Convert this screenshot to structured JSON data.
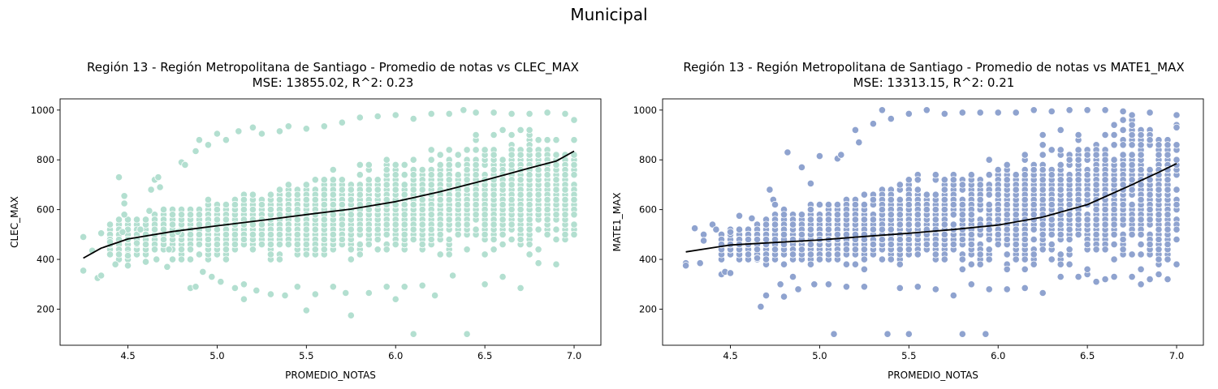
{
  "figure": {
    "suptitle": "Municipal"
  },
  "chart_data": [
    {
      "type": "scatter",
      "title_line1": "Región 13 - Región Metropolitana de Santiago - Promedio de notas vs CLEC_MAX",
      "title_line2": "MSE: 13855.02, R^2: 0.23",
      "xlabel": "PROMEDIO_NOTAS",
      "ylabel": "CLEC_MAX",
      "xlim": [
        4.12,
        7.15
      ],
      "ylim": [
        55,
        1045
      ],
      "xticks": [
        4.5,
        5.0,
        5.5,
        6.0,
        6.5,
        7.0
      ],
      "xtick_labels": [
        "4.5",
        "5.0",
        "5.5",
        "6.0",
        "6.5",
        "7.0"
      ],
      "yticks": [
        200,
        400,
        600,
        800,
        1000
      ],
      "ytick_labels": [
        "200",
        "400",
        "600",
        "800",
        "1000"
      ],
      "grid": false,
      "point_color": "#b3dfd0",
      "curve_color": "#000000",
      "series": [
        {
          "points": [
            [
              4.25,
              490
            ],
            [
              4.25,
              355
            ],
            [
              4.3,
              435
            ],
            [
              4.33,
              325
            ],
            [
              4.35,
              505
            ],
            [
              4.35,
              335
            ],
            [
              4.4,
              470
            ],
            [
              4.43,
              380
            ],
            [
              4.45,
              730
            ],
            [
              4.47,
              510
            ],
            [
              4.48,
              580
            ],
            [
              4.48,
              625
            ],
            [
              4.48,
              655
            ],
            [
              4.5,
              375
            ],
            [
              4.5,
              415
            ],
            [
              4.55,
              465
            ],
            [
              4.57,
              520
            ],
            [
              4.6,
              390
            ],
            [
              4.62,
              595
            ],
            [
              4.63,
              680
            ],
            [
              4.65,
              720
            ],
            [
              4.66,
              400
            ],
            [
              4.67,
              730
            ],
            [
              4.68,
              690
            ],
            [
              4.7,
              600
            ],
            [
              4.72,
              370
            ],
            [
              4.73,
              440
            ],
            [
              4.75,
              540
            ],
            [
              4.78,
              510
            ],
            [
              4.8,
              790
            ],
            [
              4.82,
              780
            ],
            [
              4.85,
              285
            ],
            [
              4.88,
              835
            ],
            [
              4.88,
              290
            ],
            [
              4.9,
              880
            ],
            [
              4.92,
              350
            ],
            [
              4.95,
              860
            ],
            [
              4.97,
              330
            ],
            [
              5.0,
              905
            ],
            [
              5.02,
              310
            ],
            [
              5.05,
              880
            ],
            [
              5.1,
              285
            ],
            [
              5.12,
              915
            ],
            [
              5.15,
              240
            ],
            [
              5.15,
              300
            ],
            [
              5.2,
              930
            ],
            [
              5.22,
              275
            ],
            [
              5.25,
              905
            ],
            [
              5.3,
              260
            ],
            [
              5.35,
              915
            ],
            [
              5.38,
              255
            ],
            [
              5.4,
              935
            ],
            [
              5.45,
              290
            ],
            [
              5.5,
              195
            ],
            [
              5.5,
              925
            ],
            [
              5.55,
              260
            ],
            [
              5.6,
              935
            ],
            [
              5.65,
              290
            ],
            [
              5.7,
              950
            ],
            [
              5.72,
              265
            ],
            [
              5.75,
              175
            ],
            [
              5.8,
              970
            ],
            [
              5.85,
              265
            ],
            [
              5.9,
              975
            ],
            [
              5.95,
              290
            ],
            [
              6.0,
              240
            ],
            [
              6.0,
              980
            ],
            [
              6.05,
              290
            ],
            [
              6.1,
              100
            ],
            [
              6.1,
              965
            ],
            [
              6.15,
              295
            ],
            [
              6.2,
              985
            ],
            [
              6.22,
              255
            ],
            [
              6.3,
              985
            ],
            [
              6.32,
              335
            ],
            [
              6.38,
              1000
            ],
            [
              6.4,
              100
            ],
            [
              6.45,
              990
            ],
            [
              6.5,
              300
            ],
            [
              6.55,
              990
            ],
            [
              6.6,
              330
            ],
            [
              6.65,
              985
            ],
            [
              6.7,
              285
            ],
            [
              6.75,
              985
            ],
            [
              6.8,
              385
            ],
            [
              6.85,
              990
            ],
            [
              6.9,
              380
            ],
            [
              6.95,
              985
            ],
            [
              7.0,
              640
            ],
            [
              7.0,
              880
            ],
            [
              7.0,
              780
            ]
          ],
          "cloud": {
            "x_min": 4.4,
            "x_max": 7.0,
            "mid_start": 480,
            "mid_end": 690,
            "half_spread_start": 70,
            "half_spread_end": 260,
            "count": 3000,
            "y_min": 260,
            "y_max": 985
          }
        }
      ],
      "fit_curve": {
        "x": [
          4.25,
          4.35,
          4.5,
          4.75,
          5.0,
          5.25,
          5.5,
          5.75,
          6.0,
          6.25,
          6.5,
          6.75,
          6.9,
          7.0
        ],
        "y": [
          405,
          445,
          482,
          512,
          535,
          557,
          580,
          602,
          632,
          672,
          718,
          767,
          795,
          835
        ]
      }
    },
    {
      "type": "scatter",
      "title_line1": "Región 13 - Región Metropolitana de Santiago - Promedio de notas vs MATE1_MAX",
      "title_line2": "MSE: 13313.15, R^2: 0.21",
      "xlabel": "PROMEDIO_NOTAS",
      "ylabel": "MATE1_MAX",
      "xlim": [
        4.12,
        7.15
      ],
      "ylim": [
        55,
        1045
      ],
      "xticks": [
        4.5,
        5.0,
        5.5,
        6.0,
        6.5,
        7.0
      ],
      "xtick_labels": [
        "4.5",
        "5.0",
        "5.5",
        "6.0",
        "6.5",
        "7.0"
      ],
      "yticks": [
        200,
        400,
        600,
        800,
        1000
      ],
      "ytick_labels": [
        "200",
        "400",
        "600",
        "800",
        "1000"
      ],
      "grid": false,
      "point_color": "#8fa3cf",
      "curve_color": "#000000",
      "series": [
        {
          "points": [
            [
              4.25,
              385
            ],
            [
              4.25,
              375
            ],
            [
              4.3,
              525
            ],
            [
              4.33,
              385
            ],
            [
              4.35,
              500
            ],
            [
              4.35,
              475
            ],
            [
              4.4,
              540
            ],
            [
              4.42,
              520
            ],
            [
              4.45,
              340
            ],
            [
              4.47,
              350
            ],
            [
              4.5,
              510
            ],
            [
              4.5,
              345
            ],
            [
              4.55,
              575
            ],
            [
              4.6,
              420
            ],
            [
              4.62,
              565
            ],
            [
              4.65,
              405
            ],
            [
              4.67,
              210
            ],
            [
              4.7,
              255
            ],
            [
              4.72,
              680
            ],
            [
              4.74,
              640
            ],
            [
              4.75,
              620
            ],
            [
              4.78,
              300
            ],
            [
              4.8,
              250
            ],
            [
              4.82,
              830
            ],
            [
              4.85,
              330
            ],
            [
              4.88,
              280
            ],
            [
              4.9,
              770
            ],
            [
              4.95,
              705
            ],
            [
              4.97,
              300
            ],
            [
              5.0,
              815
            ],
            [
              5.05,
              300
            ],
            [
              5.08,
              100
            ],
            [
              5.1,
              805
            ],
            [
              5.12,
              820
            ],
            [
              5.15,
              290
            ],
            [
              5.2,
              920
            ],
            [
              5.22,
              870
            ],
            [
              5.25,
              290
            ],
            [
              5.3,
              945
            ],
            [
              5.35,
              1000
            ],
            [
              5.38,
              100
            ],
            [
              5.4,
              965
            ],
            [
              5.45,
              285
            ],
            [
              5.5,
              100
            ],
            [
              5.5,
              985
            ],
            [
              5.55,
              290
            ],
            [
              5.6,
              1000
            ],
            [
              5.65,
              280
            ],
            [
              5.7,
              985
            ],
            [
              5.75,
              255
            ],
            [
              5.8,
              100
            ],
            [
              5.8,
              990
            ],
            [
              5.85,
              300
            ],
            [
              5.9,
              990
            ],
            [
              5.93,
              100
            ],
            [
              5.95,
              280
            ],
            [
              6.0,
              990
            ],
            [
              6.05,
              280
            ],
            [
              6.1,
              990
            ],
            [
              6.15,
              285
            ],
            [
              6.2,
              1000
            ],
            [
              6.25,
              265
            ],
            [
              6.3,
              995
            ],
            [
              6.35,
              330
            ],
            [
              6.4,
              1000
            ],
            [
              6.45,
              330
            ],
            [
              6.5,
              1000
            ],
            [
              6.55,
              310
            ],
            [
              6.6,
              1000
            ],
            [
              6.65,
              330
            ],
            [
              6.7,
              995
            ],
            [
              6.75,
              330
            ],
            [
              6.8,
              300
            ],
            [
              6.85,
              990
            ],
            [
              6.9,
              340
            ],
            [
              6.95,
              460
            ],
            [
              7.0,
              480
            ],
            [
              7.0,
              930
            ],
            [
              7.0,
              980
            ],
            [
              7.0,
              860
            ]
          ],
          "cloud": {
            "x_min": 4.45,
            "x_max": 7.0,
            "mid_start": 455,
            "mid_end": 680,
            "half_spread_start": 60,
            "half_spread_end": 330,
            "count": 3000,
            "y_min": 275,
            "y_max": 1000
          }
        }
      ],
      "fit_curve": {
        "x": [
          4.25,
          4.5,
          4.75,
          5.0,
          5.25,
          5.5,
          5.75,
          6.0,
          6.25,
          6.5,
          6.75,
          6.9,
          7.0
        ],
        "y": [
          430,
          458,
          468,
          478,
          492,
          505,
          520,
          538,
          570,
          620,
          700,
          750,
          785
        ]
      }
    }
  ]
}
